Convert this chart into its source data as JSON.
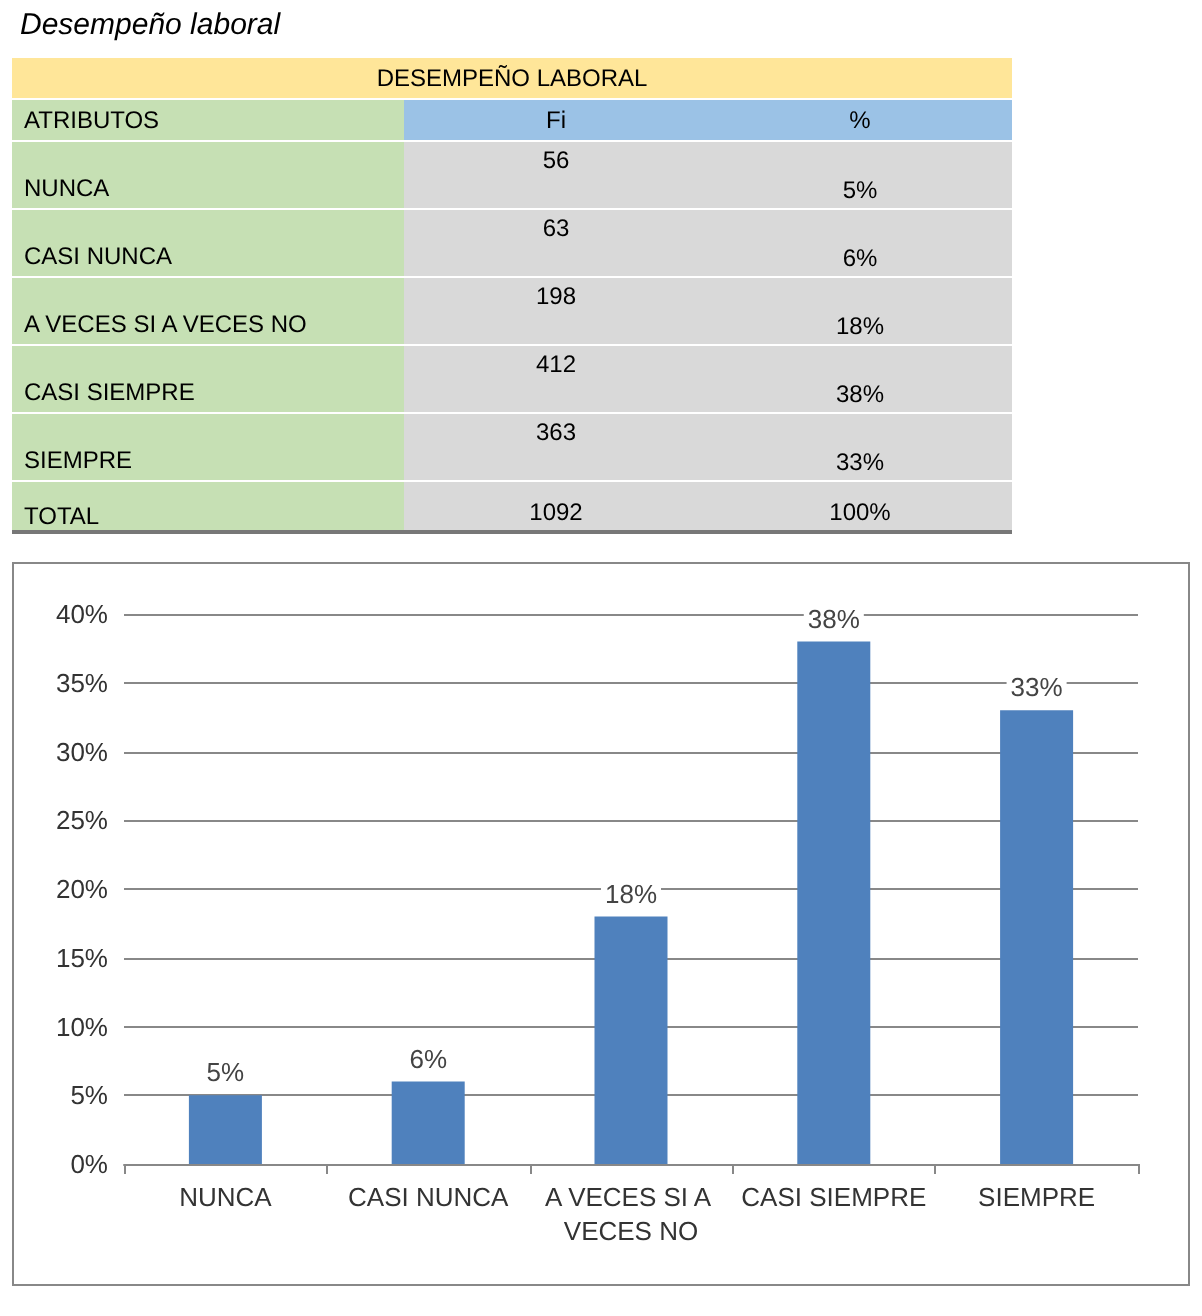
{
  "chart_data": [
    {
      "type": "other",
      "data_labels": true,
      "title": "Desempeño laboral",
      "subtitle": "DESEMPEÑO LABORAL",
      "xlabel": "ATRIBUTOS",
      "categories": [
        "NUNCA",
        "CASI NUNCA",
        "A VECES SI A VECES NO",
        "CASI SIEMPRE",
        "SIEMPRE",
        "TOTAL"
      ],
      "series": [
        {
          "name": "Fi",
          "values": [
            56,
            63,
            198,
            412,
            363,
            1092
          ]
        },
        {
          "name": "%",
          "values": [
            5,
            6,
            18,
            38,
            33,
            100
          ],
          "value_labels": [
            "5%",
            "6%",
            "18%",
            "38%",
            "33%",
            "100%"
          ]
        }
      ]
    },
    {
      "type": "bar",
      "categories": [
        "NUNCA",
        "CASI NUNCA",
        "A VECES SI A VECES NO",
        "CASI SIEMPRE",
        "SIEMPRE"
      ],
      "values": [
        5,
        6,
        18,
        38,
        33
      ],
      "color": "#4f81bd",
      "value_labels": [
        "5%",
        "6%",
        "18%",
        "38%",
        "33%"
      ],
      "ylim": [
        0,
        40
      ],
      "yticks": [
        {
          "value": 0,
          "label": "0%"
        },
        {
          "value": 5,
          "label": "5%"
        },
        {
          "value": 10,
          "label": "10%"
        },
        {
          "value": 15,
          "label": "15%"
        },
        {
          "value": 20,
          "label": "20%"
        },
        {
          "value": 25,
          "label": "25%"
        },
        {
          "value": 30,
          "label": "30%"
        },
        {
          "value": 35,
          "label": "35%"
        },
        {
          "value": 40,
          "label": "40%"
        }
      ],
      "grid": "y"
    }
  ]
}
